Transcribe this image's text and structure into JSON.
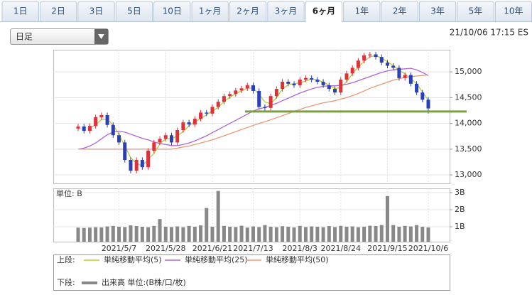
{
  "tabs": [
    "1日",
    "2日",
    "3日",
    "5日",
    "10日",
    "1ヶ月",
    "2ヶ月",
    "3ヶ月",
    "6ヶ月",
    "1年",
    "2年",
    "3年",
    "5年",
    "10年"
  ],
  "active_tab": 8,
  "period_select": "日足",
  "timestamp": "21/10/06 17:15 ES",
  "chart_data": [
    {
      "type": "candlestick",
      "categories": [
        null,
        null,
        null,
        null,
        null,
        null,
        null,
        "2021/5/7",
        null,
        null,
        null,
        null,
        null,
        null,
        null,
        "2021/5/28",
        null,
        null,
        null,
        null,
        null,
        null,
        null,
        "2021/6/21",
        null,
        null,
        null,
        null,
        null,
        null,
        "2021/7/13",
        null,
        null,
        null,
        null,
        null,
        null,
        null,
        "2021/8/3",
        null,
        null,
        null,
        null,
        null,
        null,
        "2021/8/24",
        null,
        null,
        null,
        null,
        null,
        null,
        null,
        "2021/9/15",
        null,
        null,
        null,
        null,
        null,
        null,
        "2021/10/6"
      ],
      "open": [
        13900,
        13940,
        13855,
        13950,
        14120,
        14160,
        13970,
        13770,
        13630,
        13290,
        13080,
        13290,
        13150,
        13470,
        13630,
        13700,
        13770,
        13630,
        13870,
        14020,
        13980,
        14090,
        14210,
        14190,
        14320,
        14420,
        14530,
        14570,
        14640,
        14680,
        14740,
        14630,
        14320,
        14300,
        14530,
        14670,
        14810,
        14770,
        14740,
        14850,
        14880,
        14850,
        14810,
        14740,
        14670,
        14600,
        14850,
        14970,
        15080,
        15220,
        15320,
        15340,
        15290,
        15180,
        15120,
        15080,
        14880,
        14940,
        14770,
        14600,
        14460
      ],
      "high": [
        13990,
        13990,
        14000,
        14170,
        14210,
        14210,
        14020,
        13820,
        13680,
        13340,
        13340,
        13340,
        13520,
        13680,
        13750,
        13820,
        13820,
        13920,
        14070,
        14070,
        14140,
        14260,
        14260,
        14370,
        14470,
        14580,
        14620,
        14690,
        14730,
        14790,
        14790,
        14680,
        14370,
        14580,
        14720,
        14860,
        14860,
        14820,
        14900,
        14930,
        14930,
        14900,
        14860,
        14790,
        14720,
        14900,
        15020,
        15130,
        15270,
        15370,
        15390,
        15390,
        15340,
        15230,
        15170,
        15130,
        14990,
        14990,
        14820,
        14650,
        14510
      ],
      "low": [
        13850,
        13805,
        13805,
        13900,
        14070,
        13920,
        13720,
        13580,
        13240,
        13030,
        13030,
        13100,
        13100,
        13420,
        13580,
        13650,
        13580,
        13580,
        13820,
        13930,
        13930,
        14040,
        14140,
        14140,
        14270,
        14370,
        14480,
        14520,
        14590,
        14630,
        14580,
        14270,
        14250,
        14250,
        14480,
        14620,
        14720,
        14690,
        14690,
        14800,
        14800,
        14760,
        14690,
        14620,
        14550,
        14550,
        14800,
        14920,
        15030,
        15170,
        15270,
        15240,
        15130,
        15070,
        15030,
        14830,
        14830,
        14720,
        14550,
        14410,
        14190
      ],
      "close": [
        13940,
        13855,
        13950,
        14120,
        14160,
        13970,
        13770,
        13630,
        13290,
        13080,
        13290,
        13150,
        13470,
        13630,
        13700,
        13770,
        13630,
        13870,
        14020,
        13980,
        14090,
        14210,
        14190,
        14320,
        14420,
        14530,
        14570,
        14640,
        14680,
        14740,
        14630,
        14320,
        14300,
        14530,
        14670,
        14810,
        14770,
        14740,
        14850,
        14880,
        14850,
        14810,
        14740,
        14670,
        14600,
        14850,
        14970,
        15080,
        15220,
        15320,
        15340,
        15290,
        15180,
        15120,
        15080,
        14880,
        14940,
        14770,
        14600,
        14460,
        14290
      ],
      "up_color": "#e0303a",
      "down_color": "#2a3fb8",
      "lines": [
        {
          "name": "単純移動平均(5)",
          "color": "#b5cc3a",
          "values": [
            null,
            null,
            13915,
            13975,
            14075,
            14085,
            13965,
            13790,
            13565,
            13335,
            13220,
            13175,
            13305,
            13415,
            13600,
            13700,
            13700,
            13760,
            13840,
            13955,
            14030,
            14095,
            14165,
            14240,
            14310,
            14425,
            14505,
            14580,
            14630,
            14685,
            14685,
            14565,
            14415,
            14385,
            14500,
            14670,
            14750,
            14775,
            14785,
            14825,
            14860,
            14845,
            14800,
            14740,
            14670,
            14705,
            14805,
            14965,
            15090,
            15205,
            15295,
            15315,
            15270,
            15195,
            15125,
            15025,
            14965,
            14865,
            14770,
            14610,
            14450
          ]
        },
        {
          "name": "単純移動平均(25)",
          "color": "#b066d6",
          "values": [
            13500,
            13520,
            13560,
            13620,
            13700,
            13780,
            13830,
            13850,
            13830,
            13790,
            13750,
            13710,
            13680,
            13640,
            13610,
            13590,
            13570,
            13570,
            13590,
            13620,
            13660,
            13710,
            13760,
            13820,
            13880,
            13940,
            14000,
            14060,
            14120,
            14180,
            14240,
            14280,
            14310,
            14350,
            14390,
            14440,
            14490,
            14540,
            14590,
            14630,
            14670,
            14700,
            14720,
            14730,
            14730,
            14740,
            14760,
            14790,
            14830,
            14870,
            14910,
            14950,
            14990,
            15020,
            15040,
            15050,
            15060,
            15070,
            15040,
            14990,
            14930
          ]
        },
        {
          "name": "単純移動平均(50)",
          "color": "#e89a78",
          "values": [
            13500,
            13500,
            13500,
            13500,
            13500,
            13500,
            13500,
            13500,
            13500,
            13500,
            13500,
            13500,
            13500,
            13500,
            13500,
            13500,
            13500,
            13520,
            13540,
            13560,
            13590,
            13620,
            13650,
            13680,
            13720,
            13760,
            13800,
            13840,
            13880,
            13920,
            13960,
            14000,
            14030,
            14070,
            14110,
            14150,
            14190,
            14230,
            14270,
            14310,
            14340,
            14370,
            14400,
            14420,
            14440,
            14470,
            14500,
            14540,
            14580,
            14630,
            14680,
            14720,
            14760,
            14800,
            14840,
            14870,
            14890,
            14910,
            14920,
            14930,
            14940
          ]
        }
      ],
      "support_line": {
        "value": 14230,
        "color": "#79a33a"
      },
      "ylim": [
        12835,
        15430
      ],
      "yticks": [
        {
          "value": 13000,
          "label": "13,000"
        },
        {
          "value": 13500,
          "label": "13,500"
        },
        {
          "value": 14000,
          "label": "14,000"
        },
        {
          "value": 14500,
          "label": "14,500"
        },
        {
          "value": 15000,
          "label": "15,000"
        }
      ],
      "grid": true,
      "legend_label": "上段:"
    },
    {
      "type": "bar",
      "unit_label": "単位: B",
      "series": [
        {
          "name": "出来高 単位:(B株/口/枚)",
          "color": "#888888",
          "values": [
            0.95,
            0.93,
            0.95,
            0.97,
            0.96,
            1.02,
            1.05,
            1.0,
            0.98,
            1.08,
            1.04,
            1.0,
            0.97,
            1.05,
            1.45,
            1.0,
            0.98,
            1.02,
            0.97,
            1.05,
            1.0,
            1.08,
            2.1,
            1.0,
            3.1,
            1.05,
            1.0,
            0.98,
            1.06,
            0.95,
            1.02,
            0.98,
            1.1,
            1.0,
            0.97,
            1.03,
            1.0,
            0.96,
            1.05,
            0.98,
            1.02,
            1.0,
            0.97,
            1.04,
            0.98,
            1.05,
            1.0,
            1.02,
            0.97,
            1.0,
            1.06,
            1.04,
            1.1,
            2.8,
            1.1,
            1.0,
            1.05,
            1.02,
            1.1,
            1.0,
            0.96
          ]
        }
      ],
      "ylim": [
        0.125,
        3.25
      ],
      "yticks": [
        {
          "value": 1,
          "label": "1B"
        },
        {
          "value": 2,
          "label": "2B"
        },
        {
          "value": 3,
          "label": "3B"
        }
      ],
      "grid": true,
      "legend_label": "下段:"
    }
  ]
}
